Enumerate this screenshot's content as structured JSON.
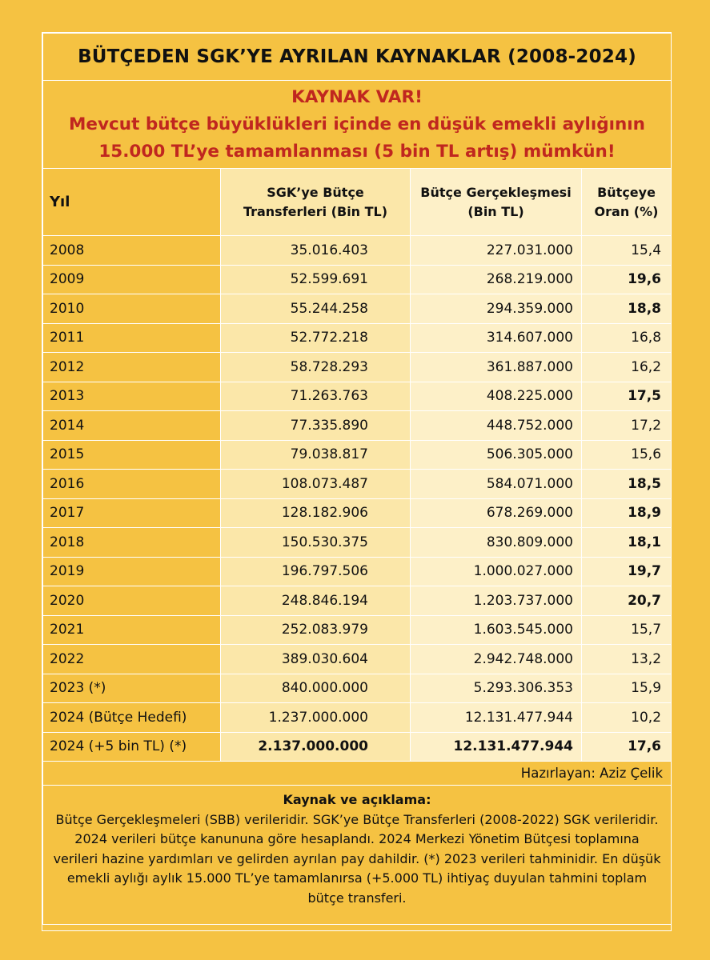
{
  "title": "BÜTÇEDEN SGK’YE AYRILAN KAYNAKLAR (2008-2024)",
  "headline": {
    "line1": "KAYNAK VAR!",
    "line2": "Mevcut bütçe büyüklükleri içinde en düşük emekli aylığının",
    "line3": "15.000 TL’ye tamamlanması (5 bin TL artış) mümkün!"
  },
  "colors": {
    "background": "#f5c242",
    "headline_red": "#c0271f",
    "col_light": "#fbe7a9",
    "col_lighter": "#fdf0c8"
  },
  "chart_data": {
    "type": "table",
    "columns": [
      "Yıl",
      "SGK’ye Bütçe Transferleri (Bin TL)",
      "Bütçe Gerçekleşmesi (Bin TL)",
      "Bütçeye Oran (%)"
    ],
    "rows": [
      {
        "year": "2008",
        "sgk": "35.016.403",
        "budget": "227.031.000",
        "ratio": "15,4",
        "bold_ratio": false,
        "bold_all": false
      },
      {
        "year": "2009",
        "sgk": "52.599.691",
        "budget": "268.219.000",
        "ratio": "19,6",
        "bold_ratio": true,
        "bold_all": false
      },
      {
        "year": "2010",
        "sgk": "55.244.258",
        "budget": "294.359.000",
        "ratio": "18,8",
        "bold_ratio": true,
        "bold_all": false
      },
      {
        "year": "2011",
        "sgk": "52.772.218",
        "budget": "314.607.000",
        "ratio": "16,8",
        "bold_ratio": false,
        "bold_all": false
      },
      {
        "year": "2012",
        "sgk": "58.728.293",
        "budget": "361.887.000",
        "ratio": "16,2",
        "bold_ratio": false,
        "bold_all": false
      },
      {
        "year": "2013",
        "sgk": "71.263.763",
        "budget": "408.225.000",
        "ratio": "17,5",
        "bold_ratio": true,
        "bold_all": false
      },
      {
        "year": "2014",
        "sgk": "77.335.890",
        "budget": "448.752.000",
        "ratio": "17,2",
        "bold_ratio": false,
        "bold_all": false
      },
      {
        "year": "2015",
        "sgk": "79.038.817",
        "budget": "506.305.000",
        "ratio": "15,6",
        "bold_ratio": false,
        "bold_all": false
      },
      {
        "year": "2016",
        "sgk": "108.073.487",
        "budget": "584.071.000",
        "ratio": "18,5",
        "bold_ratio": true,
        "bold_all": false
      },
      {
        "year": "2017",
        "sgk": "128.182.906",
        "budget": "678.269.000",
        "ratio": "18,9",
        "bold_ratio": true,
        "bold_all": false
      },
      {
        "year": "2018",
        "sgk": "150.530.375",
        "budget": "830.809.000",
        "ratio": "18,1",
        "bold_ratio": true,
        "bold_all": false
      },
      {
        "year": "2019",
        "sgk": "196.797.506",
        "budget": "1.000.027.000",
        "ratio": "19,7",
        "bold_ratio": true,
        "bold_all": false
      },
      {
        "year": "2020",
        "sgk": "248.846.194",
        "budget": "1.203.737.000",
        "ratio": "20,7",
        "bold_ratio": true,
        "bold_all": false
      },
      {
        "year": "2021",
        "sgk": "252.083.979",
        "budget": "1.603.545.000",
        "ratio": "15,7",
        "bold_ratio": false,
        "bold_all": false
      },
      {
        "year": "2022",
        "sgk": "389.030.604",
        "budget": "2.942.748.000",
        "ratio": "13,2",
        "bold_ratio": false,
        "bold_all": false
      },
      {
        "year": "2023 (*)",
        "sgk": "840.000.000",
        "budget": "5.293.306.353",
        "ratio": "15,9",
        "bold_ratio": false,
        "bold_all": false
      },
      {
        "year": "2024 (Bütçe Hedefi)",
        "sgk": "1.237.000.000",
        "budget": "12.131.477.944",
        "ratio": "10,2",
        "bold_ratio": false,
        "bold_all": false
      },
      {
        "year": "2024 (+5 bin TL) (*)",
        "sgk": "2.137.000.000",
        "budget": "12.131.477.944",
        "ratio": "17,6",
        "bold_ratio": true,
        "bold_all": true
      }
    ]
  },
  "prepared_by": "Hazırlayan: Aziz Çelik",
  "notes": {
    "title": "Kaynak ve açıklama:",
    "text": "Bütçe Gerçekleşmeleri (SBB) verileridir. SGK’ye Bütçe Transferleri (2008-2022) SGK verileridir. 2024 verileri bütçe kanununa göre hesaplandı.  2024 Merkezi Yönetim Bütçesi toplamına verileri hazine yardımları ve gelirden ayrılan pay dahildir. (*) 2023 verileri tahminidir. En düşük emekli aylığı aylık 15.000 TL’ye tamamlanırsa (+5.000 TL) ihtiyaç duyulan tahmini toplam bütçe transferi."
  }
}
